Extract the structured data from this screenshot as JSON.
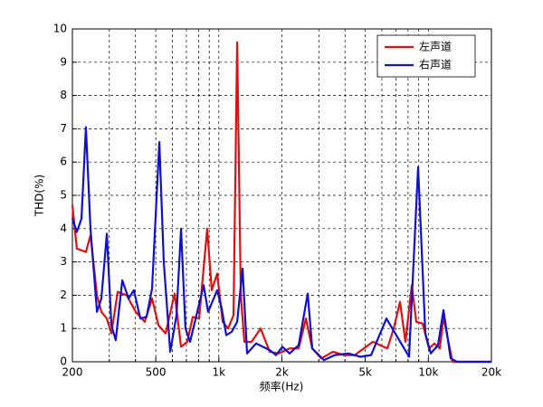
{
  "chart_data": {
    "type": "line",
    "xlabel": "频率(Hz)",
    "ylabel": "THD(%)",
    "log_x": true,
    "grid": true,
    "legend": "upper right",
    "xlim": [
      200,
      20000
    ],
    "xticks": [
      200,
      500,
      {
        "value": 1000,
        "label": "1k"
      },
      {
        "value": 2000,
        "label": "2k"
      },
      {
        "value": 5000,
        "label": "5k"
      },
      {
        "value": 10000,
        "label": "10k"
      },
      {
        "value": 20000,
        "label": "20k"
      }
    ],
    "x_minor_ticks": [
      300,
      400,
      600,
      700,
      800,
      900,
      3000,
      4000,
      6000,
      7000,
      8000,
      9000
    ],
    "ylim": [
      0,
      10
    ],
    "yticks": [
      0,
      1,
      2,
      3,
      4,
      5,
      6,
      7,
      8,
      9,
      10
    ],
    "series": [
      {
        "name": "左声道",
        "color": "#e01010",
        "x": [
          200,
          210,
          232,
          244,
          262,
          275,
          292,
          307,
          329,
          363,
          401,
          443,
          480,
          515,
          557,
          615,
          660,
          707,
          751,
          805,
          880,
          925,
          982,
          1043,
          1107,
          1175,
          1223,
          1273,
          1324,
          1433,
          1583,
          1749,
          1932,
          2176,
          2404,
          2604,
          2791,
          3082,
          3508,
          3954,
          4454,
          4920,
          5436,
          5884,
          6371,
          6834,
          7325,
          7774,
          8335,
          8760,
          9390,
          10070,
          10690,
          11346,
          11804,
          13042,
          20000
        ],
        "values": [
          4.7,
          3.4,
          3.3,
          3.8,
          2.0,
          1.5,
          1.3,
          0.85,
          2.1,
          2.0,
          1.5,
          1.2,
          1.9,
          1.1,
          0.85,
          2.05,
          0.45,
          0.6,
          1.35,
          1.3,
          4.0,
          2.15,
          2.65,
          1.2,
          1.0,
          1.4,
          9.6,
          2.0,
          0.6,
          0.6,
          1.0,
          0.3,
          0.25,
          0.4,
          0.4,
          1.3,
          0.4,
          0.1,
          0.3,
          0.2,
          0.2,
          0.4,
          0.6,
          0.5,
          0.4,
          1.0,
          1.8,
          0.6,
          2.3,
          1.2,
          1.15,
          0.4,
          0.55,
          0.4,
          1.35,
          0,
          0
        ]
      },
      {
        "name": "右声道",
        "color": "#1010d0",
        "x": [
          200,
          210,
          221,
          232,
          244,
          262,
          275,
          292,
          307,
          322,
          346,
          371,
          393,
          422,
          452,
          480,
          520,
          546,
          586,
          628,
          660,
          693,
          729,
          789,
          846,
          889,
          982,
          1032,
          1085,
          1152,
          1223,
          1298,
          1364,
          1506,
          1749,
          1875,
          2010,
          2176,
          2404,
          2656,
          2791,
          3176,
          3578,
          4155,
          4729,
          5328,
          6309,
          7181,
          8090,
          8936,
          9676,
          10272,
          11124,
          11804,
          12784,
          13710,
          20000
        ],
        "values": [
          4.3,
          3.9,
          4.3,
          7.05,
          4.0,
          1.5,
          1.9,
          3.85,
          1.1,
          0.65,
          2.45,
          1.9,
          2.15,
          1.3,
          1.35,
          2.2,
          6.6,
          3.0,
          0.3,
          1.4,
          4.0,
          1.0,
          0.6,
          1.5,
          2.3,
          1.5,
          2.15,
          1.6,
          0.8,
          0.9,
          1.2,
          2.8,
          0.25,
          0.55,
          0.35,
          0.2,
          0.45,
          0.25,
          0.5,
          2.05,
          0.4,
          0.05,
          0.2,
          0.25,
          0.15,
          0.2,
          1.3,
          0.7,
          0.15,
          5.85,
          0.85,
          0.25,
          0.5,
          1.55,
          0.1,
          0,
          0
        ]
      }
    ]
  }
}
